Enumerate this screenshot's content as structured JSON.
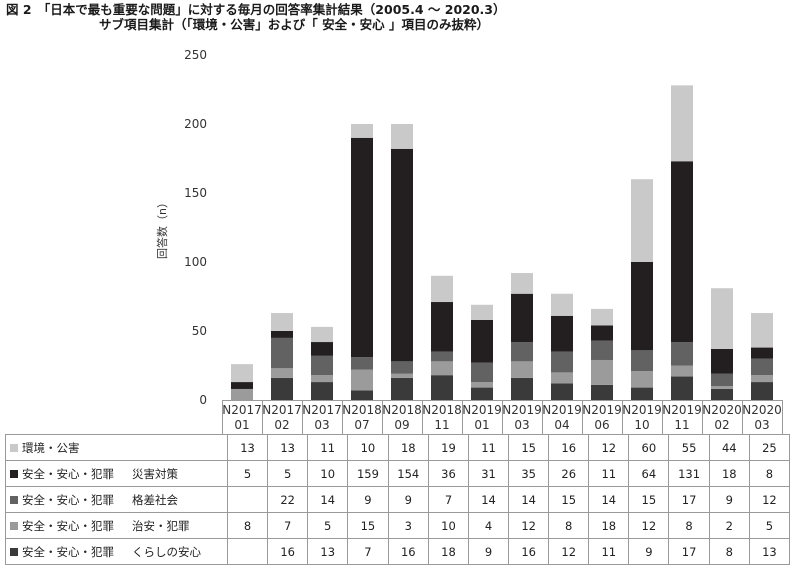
{
  "title_line1": "図 2　「日本で最も重要な問題」に対する毎月の回答率集計結果（2005.4 ～ 2020.3）",
  "title_line2": "サブ項目集計（「環境・公害」および「 安全・安心 」項目のみ抜粋）",
  "chart_data": {
    "type": "bar",
    "stacked": true,
    "ylabel": "回答数（n）",
    "ylim": [
      0,
      250
    ],
    "yticks": [
      0,
      50,
      100,
      150,
      200,
      250
    ],
    "grid": false,
    "legend": "table-below",
    "categories": [
      "N201701",
      "N201702",
      "N201703",
      "N201807",
      "N201809",
      "N201811",
      "N201901",
      "N201903",
      "N201904",
      "N201906",
      "N201910",
      "N201911",
      "N202002",
      "N202003"
    ],
    "category_lines": [
      [
        "N2017",
        "01"
      ],
      [
        "N2017",
        "02"
      ],
      [
        "N2017",
        "03"
      ],
      [
        "N2018",
        "07"
      ],
      [
        "N2018",
        "09"
      ],
      [
        "N2018",
        "11"
      ],
      [
        "N2019",
        "01"
      ],
      [
        "N2019",
        "03"
      ],
      [
        "N2019",
        "04"
      ],
      [
        "N2019",
        "06"
      ],
      [
        "N2019",
        "10"
      ],
      [
        "N2019",
        "11"
      ],
      [
        "N2020",
        "02"
      ],
      [
        "N2020",
        "03"
      ]
    ],
    "series": [
      {
        "name": "環境・公害",
        "label_parts": [
          "環境・公害",
          ""
        ],
        "color": "#c9c9c9",
        "values": [
          13,
          13,
          11,
          10,
          18,
          19,
          11,
          15,
          16,
          12,
          60,
          55,
          44,
          25
        ]
      },
      {
        "name": "安全・安心・犯罪　災害対策",
        "label_parts": [
          "安全・安心・犯罪",
          "災害対策"
        ],
        "color": "#231f20",
        "values": [
          5,
          5,
          10,
          159,
          154,
          36,
          31,
          35,
          26,
          11,
          64,
          131,
          18,
          8
        ]
      },
      {
        "name": "安全・安心・犯罪　格差社会",
        "label_parts": [
          "安全・安心・犯罪",
          "格差社会"
        ],
        "color": "#626262",
        "values": [
          null,
          22,
          14,
          9,
          9,
          7,
          14,
          14,
          15,
          14,
          15,
          17,
          9,
          12
        ]
      },
      {
        "name": "安全・安心・犯罪　治安・犯罪",
        "label_parts": [
          "安全・安心・犯罪",
          "治安・犯罪"
        ],
        "color": "#9b9b9b",
        "values": [
          8,
          7,
          5,
          15,
          3,
          10,
          4,
          12,
          8,
          18,
          12,
          8,
          2,
          5
        ]
      },
      {
        "name": "安全・安心・犯罪　くらしの安心",
        "label_parts": [
          "安全・安心・犯罪",
          "くらしの安心"
        ],
        "color": "#3a3a3a",
        "values": [
          null,
          16,
          13,
          7,
          16,
          18,
          9,
          16,
          12,
          11,
          9,
          17,
          8,
          13
        ]
      }
    ]
  }
}
